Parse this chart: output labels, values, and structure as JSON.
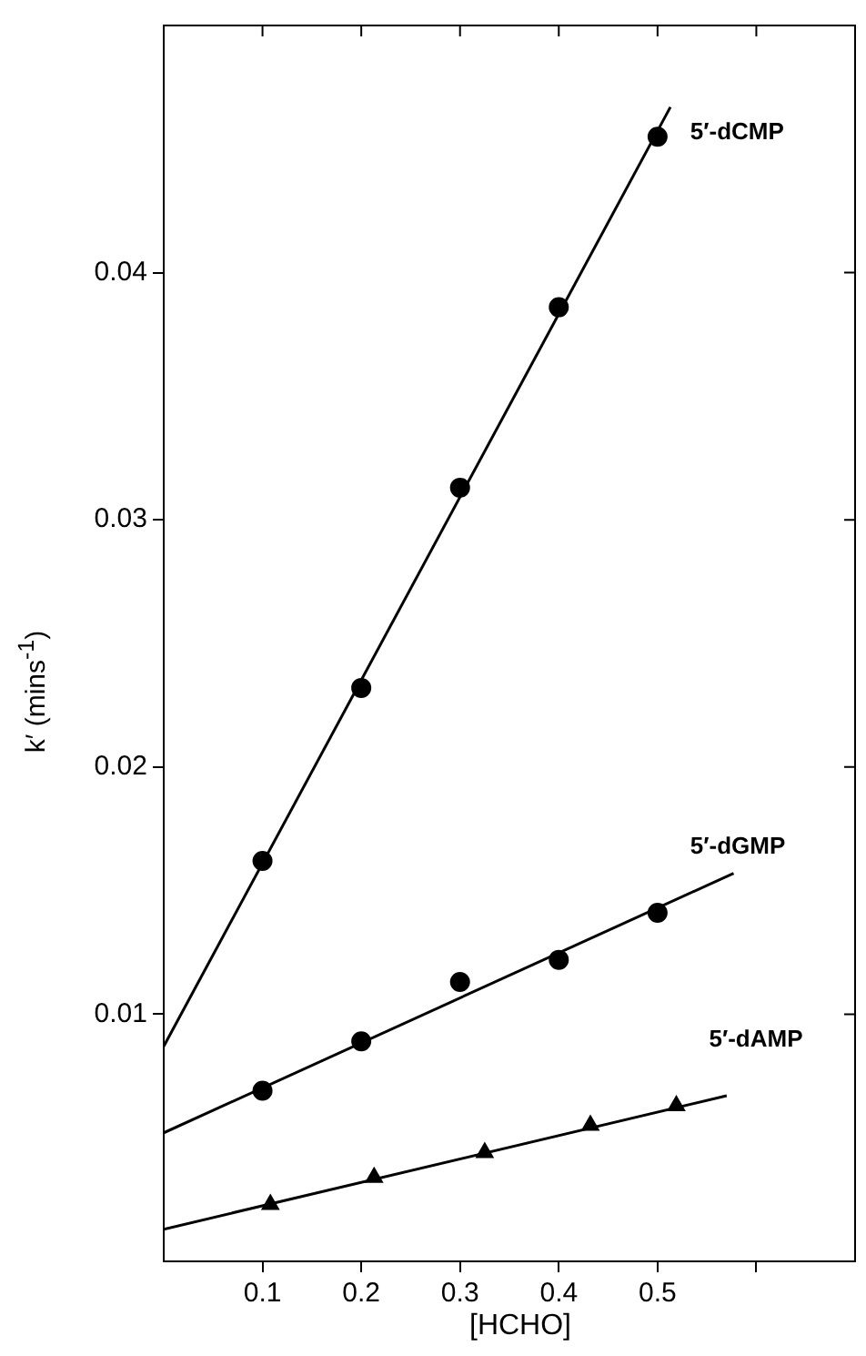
{
  "chart_data": {
    "type": "scatter",
    "xlabel": "[HCHO]",
    "ylabel": "k′ (mins$^{-1}$)",
    "xlim": [
      0,
      0.7
    ],
    "xticks": [
      0.1,
      0.2,
      0.3,
      0.4,
      0.5,
      {
        "value": 0.6,
        "label": null
      }
    ],
    "ylim": [
      0,
      0.05
    ],
    "yticks": [
      0.01,
      0.02,
      0.03,
      0.04
    ],
    "grid": false,
    "legend": false,
    "series": [
      {
        "name": "5′-dCMP",
        "type": "scatter",
        "marker": "circle",
        "color": "#000000",
        "x": [
          0.1,
          0.2,
          0.3,
          0.4,
          0.5
        ],
        "values": [
          0.0162,
          0.0232,
          0.0313,
          0.0386,
          0.0455
        ]
      },
      {
        "type": "line",
        "color": "#000000",
        "marker": "none",
        "x": [
          0,
          0.513
        ],
        "values": [
          0.0087,
          0.0467
        ]
      },
      {
        "name": "5′-dGMP",
        "type": "scatter",
        "marker": "circle",
        "color": "#000000",
        "x": [
          0.1,
          0.2,
          0.3,
          0.4,
          0.5
        ],
        "values": [
          0.0069,
          0.0089,
          0.0113,
          0.0122,
          0.0141
        ]
      },
      {
        "type": "line",
        "color": "#000000",
        "marker": "none",
        "x": [
          0,
          0.577
        ],
        "values": [
          0.0052,
          0.0157
        ]
      },
      {
        "name": "5′-dAMP",
        "type": "scatter",
        "marker": "triangle",
        "color": "#000000",
        "x": [
          0.108,
          0.213,
          0.325,
          0.432,
          0.519
        ],
        "values": [
          0.0023,
          0.0034,
          0.0044,
          0.0055,
          0.0063
        ]
      },
      {
        "type": "line",
        "color": "#000000",
        "marker": "none",
        "x": [
          0,
          0.57
        ],
        "values": [
          0.0013,
          0.0067
        ]
      }
    ]
  }
}
